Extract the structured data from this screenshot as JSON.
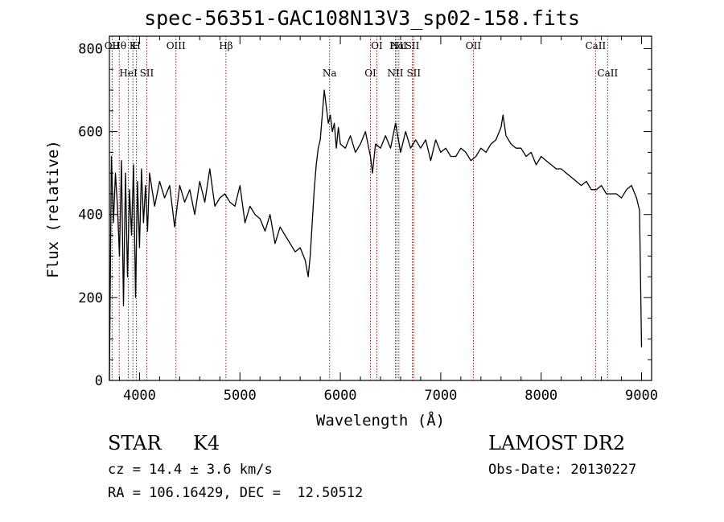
{
  "chart_data": {
    "type": "line",
    "title": "spec-56351-GAC108N13V3_sp02-158.fits",
    "xlabel": "Wavelength (Å)",
    "ylabel": "Flux (relative)",
    "xlim": [
      3700,
      9100
    ],
    "ylim": [
      0,
      830
    ],
    "x_ticks": [
      4000,
      5000,
      6000,
      7000,
      8000,
      9000
    ],
    "y_ticks": [
      0,
      200,
      400,
      600,
      800
    ],
    "x_minor_step": 200,
    "y_minor_step": 50,
    "line_color": "#000000",
    "marker_color": "#8b1a1a",
    "series": [
      {
        "x": [
          3700,
          3720,
          3740,
          3760,
          3780,
          3800,
          3820,
          3840,
          3860,
          3880,
          3900,
          3920,
          3940,
          3960,
          3980,
          4000,
          4020,
          4040,
          4060,
          4080,
          4100,
          4150,
          4200,
          4250,
          4300,
          4350,
          4400,
          4450,
          4500,
          4550,
          4600,
          4650,
          4700,
          4750,
          4800,
          4850,
          4900,
          4950,
          5000,
          5050,
          5100,
          5150,
          5200,
          5250,
          5300,
          5350,
          5400,
          5450,
          5500,
          5550,
          5600,
          5650,
          5680,
          5700,
          5720,
          5740,
          5760,
          5780,
          5800,
          5820,
          5840,
          5860,
          5880,
          5900,
          5920,
          5940,
          5960,
          5980,
          6000,
          6050,
          6100,
          6150,
          6200,
          6250,
          6300,
          6320,
          6350,
          6400,
          6450,
          6500,
          6550,
          6600,
          6650,
          6700,
          6750,
          6800,
          6850,
          6900,
          6950,
          7000,
          7050,
          7100,
          7150,
          7200,
          7250,
          7300,
          7350,
          7400,
          7450,
          7500,
          7550,
          7600,
          7620,
          7650,
          7700,
          7750,
          7800,
          7850,
          7900,
          7950,
          8000,
          8050,
          8100,
          8150,
          8200,
          8250,
          8300,
          8350,
          8400,
          8450,
          8500,
          8550,
          8600,
          8650,
          8700,
          8750,
          8800,
          8850,
          8900,
          8950,
          8980,
          9000
        ],
        "y": [
          0,
          540,
          380,
          500,
          420,
          300,
          530,
          180,
          500,
          250,
          460,
          350,
          520,
          200,
          480,
          320,
          510,
          380,
          470,
          360,
          500,
          420,
          480,
          440,
          470,
          370,
          470,
          430,
          460,
          400,
          480,
          430,
          510,
          420,
          440,
          450,
          430,
          420,
          470,
          380,
          420,
          400,
          390,
          360,
          400,
          330,
          370,
          350,
          330,
          310,
          320,
          290,
          250,
          300,
          380,
          460,
          520,
          560,
          580,
          640,
          700,
          660,
          620,
          640,
          600,
          620,
          560,
          610,
          570,
          560,
          590,
          550,
          570,
          600,
          540,
          500,
          570,
          560,
          590,
          560,
          620,
          550,
          600,
          560,
          580,
          560,
          580,
          530,
          580,
          550,
          560,
          540,
          540,
          560,
          550,
          530,
          540,
          560,
          550,
          570,
          580,
          610,
          640,
          590,
          570,
          560,
          560,
          540,
          550,
          520,
          540,
          530,
          520,
          510,
          510,
          500,
          490,
          480,
          470,
          480,
          460,
          460,
          470,
          450,
          450,
          450,
          440,
          460,
          470,
          440,
          410,
          80
        ]
      }
    ],
    "lines": [
      {
        "x": 3727,
        "top": "OII",
        "bottom": ""
      },
      {
        "x": 3798,
        "top": "Hθ",
        "bottom": ""
      },
      {
        "x": 3889,
        "top": "",
        "bottom": "HeI"
      },
      {
        "x": 3934,
        "top": "K",
        "bottom": ""
      },
      {
        "x": 3969,
        "top": "H",
        "bottom": ""
      },
      {
        "x": 4072,
        "top": "",
        "bottom": "SII"
      },
      {
        "x": 4363,
        "top": "OIII",
        "bottom": ""
      },
      {
        "x": 4861,
        "top": "Hβ",
        "bottom": ""
      },
      {
        "x": 5893,
        "top": "",
        "bottom": "Na"
      },
      {
        "x": 6300,
        "top": "",
        "bottom": "OI"
      },
      {
        "x": 6364,
        "top": "OI",
        "bottom": ""
      },
      {
        "x": 6548,
        "top": "",
        "bottom": "NII"
      },
      {
        "x": 6563,
        "top": "Hα",
        "bottom": ""
      },
      {
        "x": 6583,
        "top": "NII",
        "bottom": ""
      },
      {
        "x": 6717,
        "top": "SII",
        "bottom": ""
      },
      {
        "x": 6731,
        "top": "",
        "bottom": "SII"
      },
      {
        "x": 7325,
        "top": "OII",
        "bottom": ""
      },
      {
        "x": 8542,
        "top": "CaII",
        "bottom": ""
      },
      {
        "x": 8662,
        "top": "",
        "bottom": "CaII"
      }
    ]
  },
  "info": {
    "class": "STAR",
    "subclass": "K4",
    "survey": "LAMOST DR2",
    "redshift": "cz = 14.4 ± 3.6 km/s",
    "obs_date": "Obs-Date: 20130227",
    "coords": "RA = 106.16429, DEC =  12.50512"
  }
}
